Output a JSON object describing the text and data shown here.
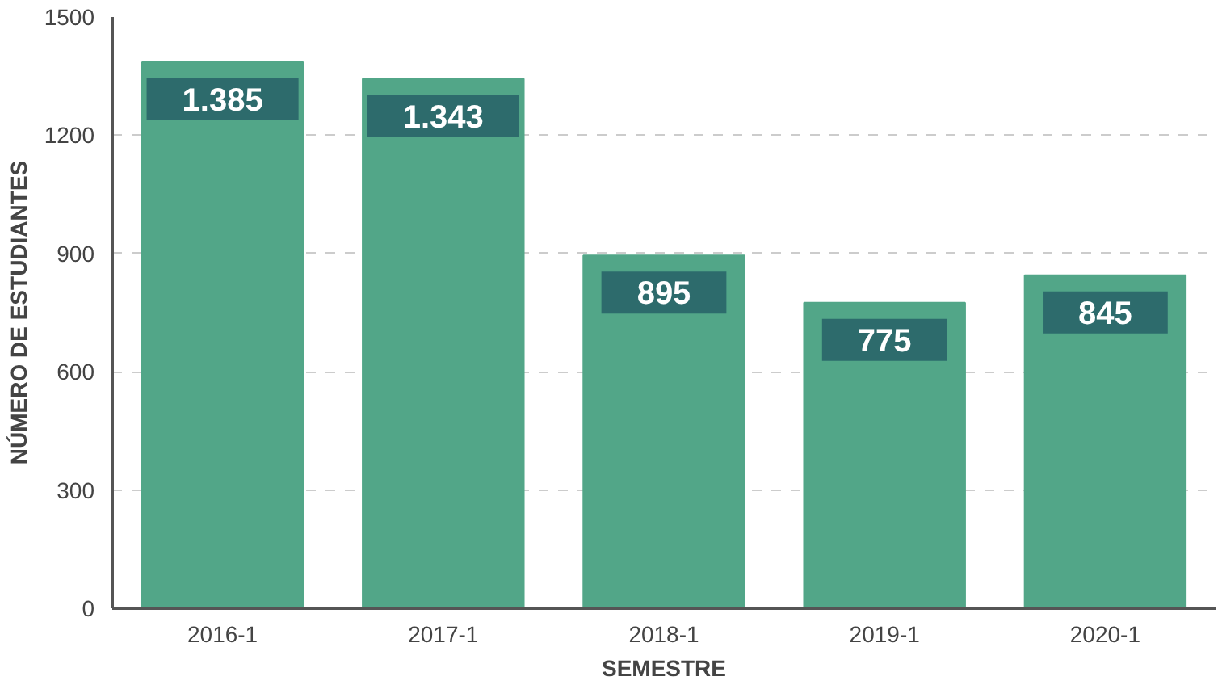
{
  "chart_data": {
    "type": "bar",
    "xlabel": "SEMESTRE",
    "ylabel": "NÚMERO DE ESTUDIANTES",
    "categories": [
      "2016-1",
      "2017-1",
      "2018-1",
      "2019-1",
      "2020-1"
    ],
    "values": [
      1385,
      1343,
      895,
      775,
      845
    ],
    "value_labels": [
      "1.385",
      "1.343",
      "895",
      "775",
      "845"
    ],
    "color": "#52a688",
    "ylim": [
      0,
      1500
    ],
    "yticks": [
      0,
      300,
      600,
      900,
      1200,
      1500
    ],
    "grid": "y"
  }
}
